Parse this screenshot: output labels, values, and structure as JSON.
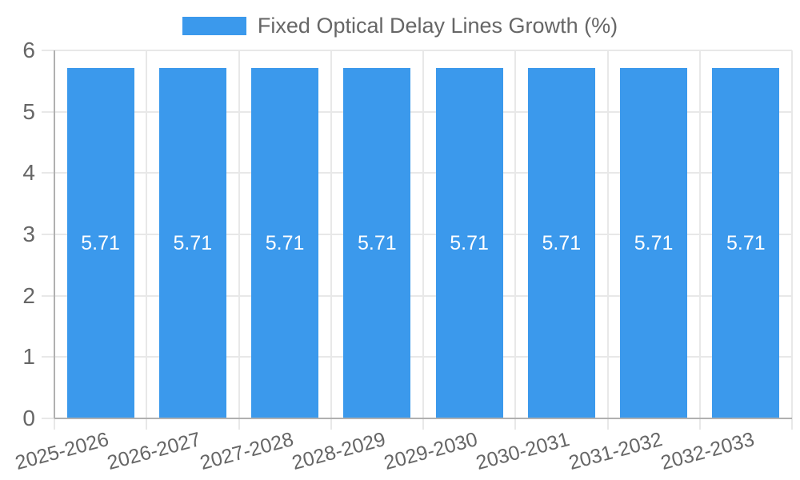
{
  "chart_data": {
    "type": "bar",
    "legend_label": "Fixed Optical Delay Lines Growth (%)",
    "categories": [
      "2025-2026",
      "2026-2027",
      "2027-2028",
      "2028-2029",
      "2029-2030",
      "2030-2031",
      "2031-2032",
      "2032-2033"
    ],
    "values": [
      5.71,
      5.71,
      5.71,
      5.71,
      5.71,
      5.71,
      5.71,
      5.71
    ],
    "value_labels": [
      "5.71",
      "5.71",
      "5.71",
      "5.71",
      "5.71",
      "5.71",
      "5.71",
      "5.71"
    ],
    "xlabel": "",
    "ylabel": "",
    "ylim": [
      0,
      6
    ],
    "yticks": [
      0,
      1,
      2,
      3,
      4,
      5,
      6
    ],
    "grid": true,
    "legend_position": "top",
    "x_label_rotation_deg": -15,
    "colors": {
      "bar": "#3b99ec",
      "bar_value_text": "#ffffff",
      "axis_text": "#666666",
      "grid_line": "#e8e8e8",
      "axis_line": "#b0b0b0",
      "background": "#ffffff"
    }
  }
}
